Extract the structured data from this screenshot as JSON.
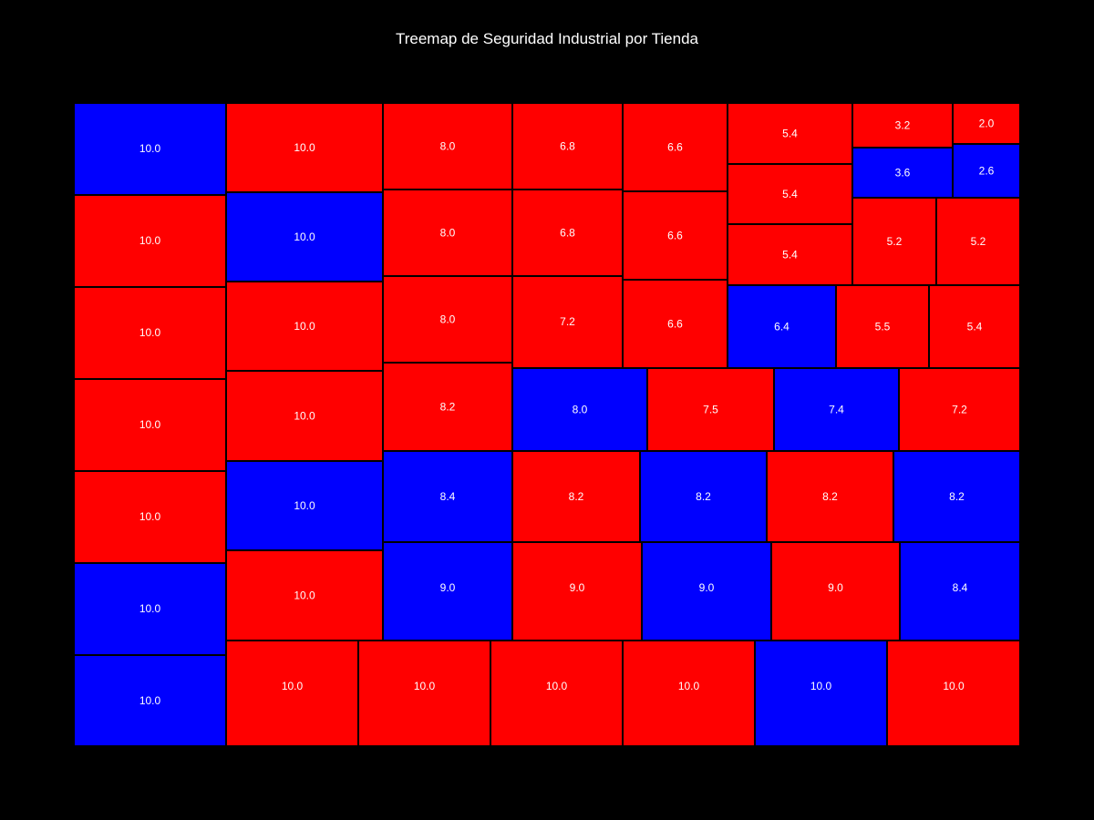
{
  "chart_data": {
    "type": "treemap",
    "title": "Treemap de Seguridad Industrial por Tienda",
    "colors": {
      "red": "#ff0000",
      "blue": "#0000ff",
      "background": "#000000",
      "border": "#000000",
      "label": "#ffffff"
    },
    "tiles": [
      {
        "label": "10.0",
        "value": 10.0,
        "color": "blue"
      },
      {
        "label": "10.0",
        "value": 10.0,
        "color": "red"
      },
      {
        "label": "10.0",
        "value": 10.0,
        "color": "red"
      },
      {
        "label": "10.0",
        "value": 10.0,
        "color": "red"
      },
      {
        "label": "10.0",
        "value": 10.0,
        "color": "red"
      },
      {
        "label": "10.0",
        "value": 10.0,
        "color": "blue"
      },
      {
        "label": "10.0",
        "value": 10.0,
        "color": "blue"
      },
      {
        "label": "10.0",
        "value": 10.0,
        "color": "red"
      },
      {
        "label": "10.0",
        "value": 10.0,
        "color": "blue"
      },
      {
        "label": "10.0",
        "value": 10.0,
        "color": "red"
      },
      {
        "label": "10.0",
        "value": 10.0,
        "color": "red"
      },
      {
        "label": "10.0",
        "value": 10.0,
        "color": "blue"
      },
      {
        "label": "10.0",
        "value": 10.0,
        "color": "red"
      },
      {
        "label": "10.0",
        "value": 10.0,
        "color": "red"
      },
      {
        "label": "10.0",
        "value": 10.0,
        "color": "red"
      },
      {
        "label": "10.0",
        "value": 10.0,
        "color": "red"
      },
      {
        "label": "10.0",
        "value": 10.0,
        "color": "red"
      },
      {
        "label": "10.0",
        "value": 10.0,
        "color": "blue"
      },
      {
        "label": "10.0",
        "value": 10.0,
        "color": "red"
      },
      {
        "label": "8.0",
        "value": 8.0,
        "color": "red"
      },
      {
        "label": "8.0",
        "value": 8.0,
        "color": "red"
      },
      {
        "label": "8.0",
        "value": 8.0,
        "color": "red"
      },
      {
        "label": "8.2",
        "value": 8.2,
        "color": "red"
      },
      {
        "label": "8.4",
        "value": 8.4,
        "color": "blue"
      },
      {
        "label": "9.0",
        "value": 9.0,
        "color": "blue"
      },
      {
        "label": "6.8",
        "value": 6.8,
        "color": "red"
      },
      {
        "label": "6.8",
        "value": 6.8,
        "color": "red"
      },
      {
        "label": "7.2",
        "value": 7.2,
        "color": "red"
      },
      {
        "label": "6.6",
        "value": 6.6,
        "color": "red"
      },
      {
        "label": "6.6",
        "value": 6.6,
        "color": "red"
      },
      {
        "label": "6.6",
        "value": 6.6,
        "color": "red"
      },
      {
        "label": "5.4",
        "value": 5.4,
        "color": "red"
      },
      {
        "label": "5.4",
        "value": 5.4,
        "color": "red"
      },
      {
        "label": "5.4",
        "value": 5.4,
        "color": "red"
      },
      {
        "label": "3.2",
        "value": 3.2,
        "color": "red"
      },
      {
        "label": "3.6",
        "value": 3.6,
        "color": "blue"
      },
      {
        "label": "2.0",
        "value": 2.0,
        "color": "red"
      },
      {
        "label": "2.6",
        "value": 2.6,
        "color": "blue"
      },
      {
        "label": "5.2",
        "value": 5.2,
        "color": "red"
      },
      {
        "label": "5.2",
        "value": 5.2,
        "color": "red"
      },
      {
        "label": "6.4",
        "value": 6.4,
        "color": "blue"
      },
      {
        "label": "5.5",
        "value": 5.5,
        "color": "red"
      },
      {
        "label": "5.4",
        "value": 5.4,
        "color": "red"
      },
      {
        "label": "8.0",
        "value": 8.0,
        "color": "blue"
      },
      {
        "label": "7.5",
        "value": 7.5,
        "color": "red"
      },
      {
        "label": "7.4",
        "value": 7.4,
        "color": "blue"
      },
      {
        "label": "7.2",
        "value": 7.2,
        "color": "red"
      },
      {
        "label": "8.2",
        "value": 8.2,
        "color": "red"
      },
      {
        "label": "8.2",
        "value": 8.2,
        "color": "blue"
      },
      {
        "label": "8.2",
        "value": 8.2,
        "color": "red"
      },
      {
        "label": "8.2",
        "value": 8.2,
        "color": "blue"
      },
      {
        "label": "9.0",
        "value": 9.0,
        "color": "red"
      },
      {
        "label": "9.0",
        "value": 9.0,
        "color": "blue"
      },
      {
        "label": "9.0",
        "value": 9.0,
        "color": "red"
      },
      {
        "label": "8.4",
        "value": 8.4,
        "color": "blue"
      }
    ]
  }
}
